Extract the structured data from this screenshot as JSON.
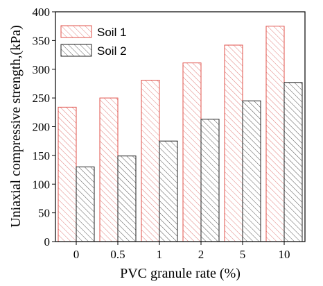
{
  "chart_data": {
    "type": "bar",
    "title": "",
    "xlabel": "PVC granule rate (%)",
    "ylabel": "Uniaxial compressive strength,(kPa)",
    "categories": [
      "0",
      "0.5",
      "1",
      "2",
      "5",
      "10"
    ],
    "ylim": [
      0,
      400
    ],
    "yticks": [
      0,
      50,
      100,
      150,
      200,
      250,
      300,
      350,
      400
    ],
    "grid": false,
    "legend_position": "top-left",
    "series": [
      {
        "name": "Soil 1",
        "values": [
          234,
          250,
          281,
          311,
          342,
          375
        ],
        "color": "#e0504a",
        "pattern": "hatch-diagonal"
      },
      {
        "name": "Soil 2",
        "values": [
          130,
          149,
          175,
          213,
          245,
          277
        ],
        "color": "#222222",
        "pattern": "hatch-diagonal"
      }
    ]
  }
}
